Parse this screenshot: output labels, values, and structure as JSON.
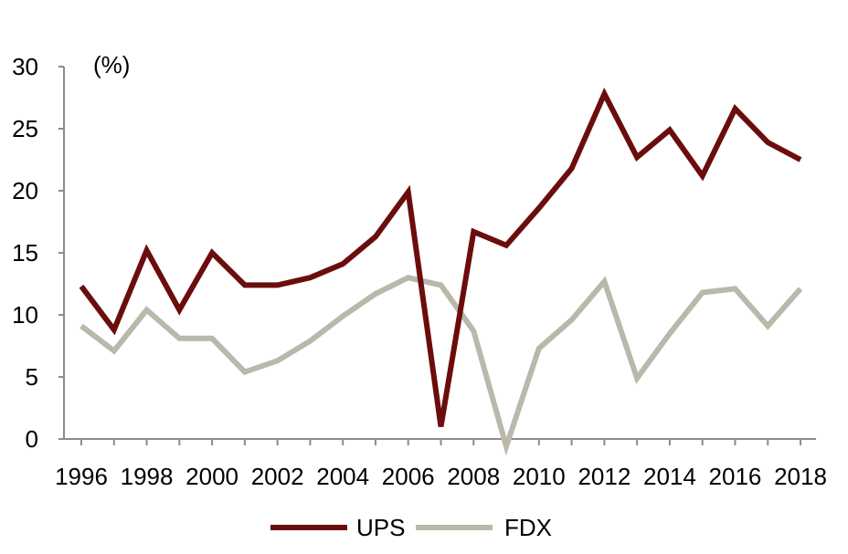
{
  "chart_data": {
    "type": "line",
    "title": "",
    "xlabel": "",
    "ylabel": "(%)",
    "ylim": [
      0,
      30
    ],
    "yticks": [
      "0",
      "5",
      "10",
      "15",
      "20",
      "25",
      "30"
    ],
    "x": [
      1996,
      1997,
      1998,
      1999,
      2000,
      2001,
      2002,
      2003,
      2004,
      2005,
      2006,
      2007,
      2008,
      2009,
      2010,
      2011,
      2012,
      2013,
      2014,
      2015,
      2016,
      2017,
      2018
    ],
    "xtick_labels": [
      "1996",
      "1998",
      "2000",
      "2002",
      "2004",
      "2006",
      "2008",
      "2010",
      "2012",
      "2014",
      "2016",
      "2018"
    ],
    "legend_position": "bottom",
    "grid": false,
    "series": [
      {
        "name": "UPS",
        "color": "#6b0d0d",
        "values": [
          12.3,
          8.8,
          15.2,
          10.4,
          15.0,
          12.4,
          12.4,
          13.0,
          14.1,
          16.3,
          19.9,
          1.0,
          16.7,
          15.6,
          18.6,
          21.8,
          27.8,
          22.7,
          24.9,
          21.2,
          26.6,
          23.9,
          22.5
        ]
      },
      {
        "name": "FDX",
        "color": "#bab8aa",
        "values": [
          9.1,
          7.1,
          10.4,
          8.1,
          8.1,
          5.4,
          6.3,
          7.9,
          9.9,
          11.7,
          13.0,
          12.4,
          8.7,
          -0.6,
          7.3,
          9.6,
          12.7,
          4.9,
          8.5,
          11.8,
          12.1,
          9.1,
          12.1
        ]
      }
    ]
  }
}
